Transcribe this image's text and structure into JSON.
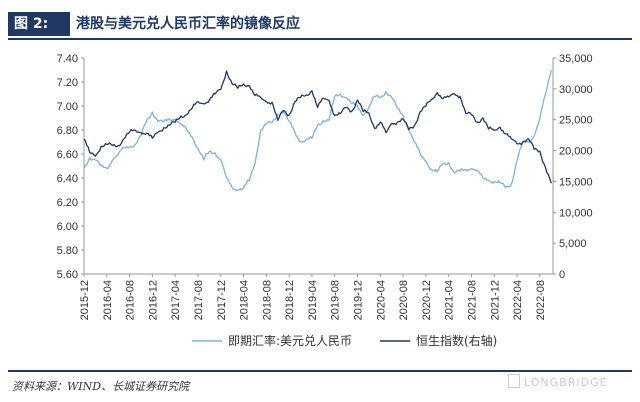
{
  "header": {
    "label": "图 2:",
    "title": "港股与美元兑人民币汇率的镜像反应"
  },
  "chart_data": {
    "type": "line",
    "title": "港股与美元兑人民币汇率的镜像反应",
    "x_ticks": [
      "2015-12",
      "2016-04",
      "2016-08",
      "2016-12",
      "2017-04",
      "2017-08",
      "2017-12",
      "2018-04",
      "2018-08",
      "2018-12",
      "2019-04",
      "2019-08",
      "2019-12",
      "2020-04",
      "2020-08",
      "2020-12",
      "2021-04",
      "2021-08",
      "2021-12",
      "2022-04",
      "2022-08"
    ],
    "y_left": {
      "min": 5.6,
      "max": 7.4,
      "ticks": [
        "7.40",
        "7.20",
        "7.00",
        "6.80",
        "6.60",
        "6.40",
        "6.20",
        "6.00",
        "5.80",
        "5.60"
      ]
    },
    "y_right": {
      "min": 0,
      "max": 35000,
      "ticks": [
        "35,000",
        "30,000",
        "25,000",
        "20,000",
        "15,000",
        "10,000",
        "5,000",
        "0"
      ]
    },
    "legend_position": "bottom",
    "series": [
      {
        "name": "即期汇率:美元兑人民币",
        "axis": "left",
        "color": "#7fb2d9",
        "x": [
          "2015-12",
          "2016-01",
          "2016-02",
          "2016-03",
          "2016-04",
          "2016-05",
          "2016-06",
          "2016-07",
          "2016-08",
          "2016-09",
          "2016-10",
          "2016-11",
          "2016-12",
          "2017-01",
          "2017-02",
          "2017-03",
          "2017-04",
          "2017-05",
          "2017-06",
          "2017-07",
          "2017-08",
          "2017-09",
          "2017-10",
          "2017-11",
          "2017-12",
          "2018-01",
          "2018-02",
          "2018-03",
          "2018-04",
          "2018-05",
          "2018-06",
          "2018-07",
          "2018-08",
          "2018-09",
          "2018-10",
          "2018-11",
          "2018-12",
          "2019-01",
          "2019-02",
          "2019-03",
          "2019-04",
          "2019-05",
          "2019-06",
          "2019-07",
          "2019-08",
          "2019-09",
          "2019-10",
          "2019-11",
          "2019-12",
          "2020-01",
          "2020-02",
          "2020-03",
          "2020-04",
          "2020-05",
          "2020-06",
          "2020-07",
          "2020-08",
          "2020-09",
          "2020-10",
          "2020-11",
          "2020-12",
          "2021-01",
          "2021-02",
          "2021-03",
          "2021-04",
          "2021-05",
          "2021-06",
          "2021-07",
          "2021-08",
          "2021-09",
          "2021-10",
          "2021-11",
          "2021-12",
          "2022-01",
          "2022-02",
          "2022-03",
          "2022-04",
          "2022-05",
          "2022-06",
          "2022-07",
          "2022-08",
          "2022-09",
          "2022-10"
        ],
        "values": [
          6.48,
          6.57,
          6.55,
          6.5,
          6.48,
          6.55,
          6.6,
          6.65,
          6.66,
          6.68,
          6.75,
          6.88,
          6.95,
          6.87,
          6.87,
          6.89,
          6.89,
          6.85,
          6.8,
          6.74,
          6.65,
          6.55,
          6.62,
          6.61,
          6.55,
          6.4,
          6.32,
          6.3,
          6.32,
          6.38,
          6.52,
          6.8,
          6.85,
          6.86,
          6.93,
          6.95,
          6.87,
          6.78,
          6.7,
          6.72,
          6.73,
          6.84,
          6.88,
          6.88,
          7.08,
          7.1,
          7.07,
          7.02,
          7.0,
          6.92,
          6.99,
          7.08,
          7.07,
          7.12,
          7.07,
          6.98,
          6.92,
          6.8,
          6.7,
          6.6,
          6.54,
          6.47,
          6.45,
          6.52,
          6.53,
          6.44,
          6.46,
          6.47,
          6.48,
          6.46,
          6.4,
          6.38,
          6.37,
          6.36,
          6.32,
          6.35,
          6.55,
          6.7,
          6.7,
          6.75,
          6.9,
          7.1,
          7.3
        ]
      },
      {
        "name": "恒生指数(右轴)",
        "axis": "right",
        "color": "#1f3864",
        "x": [
          "2015-12",
          "2016-01",
          "2016-02",
          "2016-03",
          "2016-04",
          "2016-05",
          "2016-06",
          "2016-07",
          "2016-08",
          "2016-09",
          "2016-10",
          "2016-11",
          "2016-12",
          "2017-01",
          "2017-02",
          "2017-03",
          "2017-04",
          "2017-05",
          "2017-06",
          "2017-07",
          "2017-08",
          "2017-09",
          "2017-10",
          "2017-11",
          "2017-12",
          "2018-01",
          "2018-02",
          "2018-03",
          "2018-04",
          "2018-05",
          "2018-06",
          "2018-07",
          "2018-08",
          "2018-09",
          "2018-10",
          "2018-11",
          "2018-12",
          "2019-01",
          "2019-02",
          "2019-03",
          "2019-04",
          "2019-05",
          "2019-06",
          "2019-07",
          "2019-08",
          "2019-09",
          "2019-10",
          "2019-11",
          "2019-12",
          "2020-01",
          "2020-02",
          "2020-03",
          "2020-04",
          "2020-05",
          "2020-06",
          "2020-07",
          "2020-08",
          "2020-09",
          "2020-10",
          "2020-11",
          "2020-12",
          "2021-01",
          "2021-02",
          "2021-03",
          "2021-04",
          "2021-05",
          "2021-06",
          "2021-07",
          "2021-08",
          "2021-09",
          "2021-10",
          "2021-11",
          "2021-12",
          "2022-01",
          "2022-02",
          "2022-03",
          "2022-04",
          "2022-05",
          "2022-06",
          "2022-07",
          "2022-08",
          "2022-09",
          "2022-10"
        ],
        "values": [
          21900,
          19700,
          19100,
          20700,
          21000,
          20800,
          20800,
          21900,
          23000,
          23300,
          22900,
          22800,
          22000,
          23000,
          23700,
          24100,
          24600,
          25600,
          25800,
          26900,
          27900,
          27600,
          28200,
          29200,
          29900,
          32900,
          30800,
          30100,
          30800,
          30500,
          28900,
          28600,
          27900,
          27800,
          24900,
          26500,
          25800,
          27900,
          28600,
          29000,
          29700,
          27000,
          28500,
          28100,
          25700,
          26000,
          27000,
          26400,
          28200,
          26300,
          26100,
          23600,
          24600,
          22900,
          24400,
          24600,
          25100,
          23400,
          24100,
          26300,
          27200,
          28300,
          29400,
          28400,
          28700,
          29200,
          28800,
          26000,
          25800,
          24600,
          25300,
          23500,
          23300,
          23800,
          22700,
          21900,
          21100,
          21400,
          21900,
          20200,
          19900,
          17200,
          14700
        ]
      }
    ]
  },
  "footer": {
    "source": "资料来源：WIND、长城证券研究院",
    "watermark": "LONGBRIDGE"
  }
}
